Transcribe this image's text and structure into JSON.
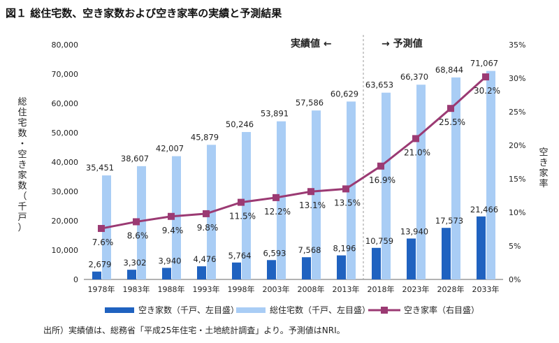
{
  "chart_data": {
    "type": "bar",
    "title": "図１ 総住宅数、空き家数および空き家率の実績と予測結果",
    "categories": [
      "1978年",
      "1983年",
      "1988年",
      "1993年",
      "1998年",
      "2003年",
      "2008年",
      "2013年",
      "2018年",
      "2023年",
      "2028年",
      "2033年"
    ],
    "series": [
      {
        "name": "空き家数（千戸、左目盛）",
        "type": "bar",
        "axis": "left",
        "color": "#1f62c0",
        "values": [
          2679,
          3302,
          3940,
          4476,
          5764,
          6593,
          7568,
          8196,
          10759,
          13940,
          17573,
          21466
        ],
        "labels": [
          "2,679",
          "3,302",
          "3,940",
          "4,476",
          "5,764",
          "6,593",
          "7,568",
          "8,196",
          "10,759",
          "13,940",
          "17,573",
          "21,466"
        ]
      },
      {
        "name": "総住宅数（千戸、左目盛）",
        "type": "bar",
        "axis": "left",
        "color": "#a9cdf5",
        "values": [
          35451,
          38607,
          42007,
          45879,
          50246,
          53891,
          57586,
          60629,
          63653,
          66370,
          68844,
          71067
        ],
        "labels": [
          "35,451",
          "38,607",
          "42,007",
          "45,879",
          "50,246",
          "53,891",
          "57,586",
          "60,629",
          "63,653",
          "66,370",
          "68,844",
          "71,067"
        ]
      },
      {
        "name": "空き家率（右目盛）",
        "type": "line",
        "axis": "right",
        "color": "#9b3a73",
        "values": [
          7.6,
          8.6,
          9.4,
          9.8,
          11.5,
          12.2,
          13.1,
          13.5,
          16.9,
          21.0,
          25.5,
          30.2
        ],
        "labels": [
          "7.6%",
          "8.6%",
          "9.4%",
          "9.8%",
          "11.5%",
          "12.2%",
          "13.1%",
          "13.5%",
          "16.9%",
          "21.0%",
          "25.5%",
          "30.2%"
        ]
      }
    ],
    "ylabel_left": "総住宅数・空き家数（千戸）",
    "ylabel_right": "空き家率",
    "ylim_left": [
      0,
      80000
    ],
    "ylim_right": [
      0,
      35
    ],
    "yticks_left": [
      "0",
      "10,000",
      "20,000",
      "30,000",
      "40,000",
      "50,000",
      "60,000",
      "70,000",
      "80,000"
    ],
    "yticks_right": [
      "0%",
      "5%",
      "10%",
      "15%",
      "20%",
      "25%",
      "30%",
      "35%"
    ],
    "annotations": {
      "actual": "実績値 ←",
      "forecast": "→ 予測値"
    },
    "source_note": "出所）実績値は、総務省「平成25年住宅・土地統計調査」より。予測値はNRI。",
    "grid": false,
    "legend_position": "bottom"
  }
}
